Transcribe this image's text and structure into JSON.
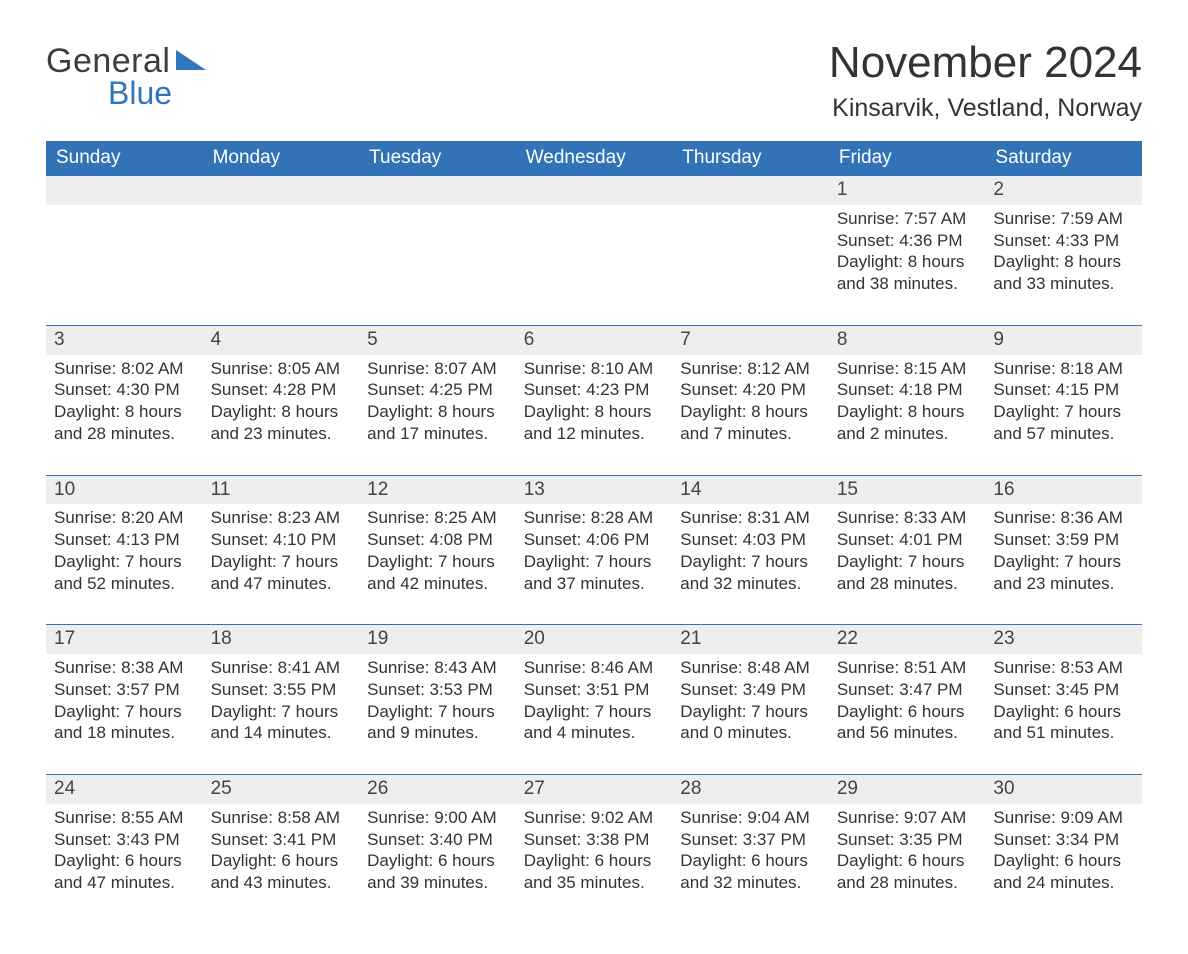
{
  "brand": {
    "general": "General",
    "blue": "Blue"
  },
  "colors": {
    "header_bg": "#3173b6",
    "header_text": "#ffffff",
    "daynum_bg": "#eeeeee",
    "text": "#333333",
    "divider": "#3173b6",
    "logo_blue": "#2f76bb",
    "page_bg": "#ffffff"
  },
  "title": "November 2024",
  "subtitle": "Kinsarvik, Vestland, Norway",
  "dow": [
    "Sunday",
    "Monday",
    "Tuesday",
    "Wednesday",
    "Thursday",
    "Friday",
    "Saturday"
  ],
  "weeks": [
    [
      null,
      null,
      null,
      null,
      null,
      {
        "num": "1",
        "sunrise": "Sunrise: 7:57 AM",
        "sunset": "Sunset: 4:36 PM",
        "dl1": "Daylight: 8 hours",
        "dl2": "and 38 minutes."
      },
      {
        "num": "2",
        "sunrise": "Sunrise: 7:59 AM",
        "sunset": "Sunset: 4:33 PM",
        "dl1": "Daylight: 8 hours",
        "dl2": "and 33 minutes."
      }
    ],
    [
      {
        "num": "3",
        "sunrise": "Sunrise: 8:02 AM",
        "sunset": "Sunset: 4:30 PM",
        "dl1": "Daylight: 8 hours",
        "dl2": "and 28 minutes."
      },
      {
        "num": "4",
        "sunrise": "Sunrise: 8:05 AM",
        "sunset": "Sunset: 4:28 PM",
        "dl1": "Daylight: 8 hours",
        "dl2": "and 23 minutes."
      },
      {
        "num": "5",
        "sunrise": "Sunrise: 8:07 AM",
        "sunset": "Sunset: 4:25 PM",
        "dl1": "Daylight: 8 hours",
        "dl2": "and 17 minutes."
      },
      {
        "num": "6",
        "sunrise": "Sunrise: 8:10 AM",
        "sunset": "Sunset: 4:23 PM",
        "dl1": "Daylight: 8 hours",
        "dl2": "and 12 minutes."
      },
      {
        "num": "7",
        "sunrise": "Sunrise: 8:12 AM",
        "sunset": "Sunset: 4:20 PM",
        "dl1": "Daylight: 8 hours",
        "dl2": "and 7 minutes."
      },
      {
        "num": "8",
        "sunrise": "Sunrise: 8:15 AM",
        "sunset": "Sunset: 4:18 PM",
        "dl1": "Daylight: 8 hours",
        "dl2": "and 2 minutes."
      },
      {
        "num": "9",
        "sunrise": "Sunrise: 8:18 AM",
        "sunset": "Sunset: 4:15 PM",
        "dl1": "Daylight: 7 hours",
        "dl2": "and 57 minutes."
      }
    ],
    [
      {
        "num": "10",
        "sunrise": "Sunrise: 8:20 AM",
        "sunset": "Sunset: 4:13 PM",
        "dl1": "Daylight: 7 hours",
        "dl2": "and 52 minutes."
      },
      {
        "num": "11",
        "sunrise": "Sunrise: 8:23 AM",
        "sunset": "Sunset: 4:10 PM",
        "dl1": "Daylight: 7 hours",
        "dl2": "and 47 minutes."
      },
      {
        "num": "12",
        "sunrise": "Sunrise: 8:25 AM",
        "sunset": "Sunset: 4:08 PM",
        "dl1": "Daylight: 7 hours",
        "dl2": "and 42 minutes."
      },
      {
        "num": "13",
        "sunrise": "Sunrise: 8:28 AM",
        "sunset": "Sunset: 4:06 PM",
        "dl1": "Daylight: 7 hours",
        "dl2": "and 37 minutes."
      },
      {
        "num": "14",
        "sunrise": "Sunrise: 8:31 AM",
        "sunset": "Sunset: 4:03 PM",
        "dl1": "Daylight: 7 hours",
        "dl2": "and 32 minutes."
      },
      {
        "num": "15",
        "sunrise": "Sunrise: 8:33 AM",
        "sunset": "Sunset: 4:01 PM",
        "dl1": "Daylight: 7 hours",
        "dl2": "and 28 minutes."
      },
      {
        "num": "16",
        "sunrise": "Sunrise: 8:36 AM",
        "sunset": "Sunset: 3:59 PM",
        "dl1": "Daylight: 7 hours",
        "dl2": "and 23 minutes."
      }
    ],
    [
      {
        "num": "17",
        "sunrise": "Sunrise: 8:38 AM",
        "sunset": "Sunset: 3:57 PM",
        "dl1": "Daylight: 7 hours",
        "dl2": "and 18 minutes."
      },
      {
        "num": "18",
        "sunrise": "Sunrise: 8:41 AM",
        "sunset": "Sunset: 3:55 PM",
        "dl1": "Daylight: 7 hours",
        "dl2": "and 14 minutes."
      },
      {
        "num": "19",
        "sunrise": "Sunrise: 8:43 AM",
        "sunset": "Sunset: 3:53 PM",
        "dl1": "Daylight: 7 hours",
        "dl2": "and 9 minutes."
      },
      {
        "num": "20",
        "sunrise": "Sunrise: 8:46 AM",
        "sunset": "Sunset: 3:51 PM",
        "dl1": "Daylight: 7 hours",
        "dl2": "and 4 minutes."
      },
      {
        "num": "21",
        "sunrise": "Sunrise: 8:48 AM",
        "sunset": "Sunset: 3:49 PM",
        "dl1": "Daylight: 7 hours",
        "dl2": "and 0 minutes."
      },
      {
        "num": "22",
        "sunrise": "Sunrise: 8:51 AM",
        "sunset": "Sunset: 3:47 PM",
        "dl1": "Daylight: 6 hours",
        "dl2": "and 56 minutes."
      },
      {
        "num": "23",
        "sunrise": "Sunrise: 8:53 AM",
        "sunset": "Sunset: 3:45 PM",
        "dl1": "Daylight: 6 hours",
        "dl2": "and 51 minutes."
      }
    ],
    [
      {
        "num": "24",
        "sunrise": "Sunrise: 8:55 AM",
        "sunset": "Sunset: 3:43 PM",
        "dl1": "Daylight: 6 hours",
        "dl2": "and 47 minutes."
      },
      {
        "num": "25",
        "sunrise": "Sunrise: 8:58 AM",
        "sunset": "Sunset: 3:41 PM",
        "dl1": "Daylight: 6 hours",
        "dl2": "and 43 minutes."
      },
      {
        "num": "26",
        "sunrise": "Sunrise: 9:00 AM",
        "sunset": "Sunset: 3:40 PM",
        "dl1": "Daylight: 6 hours",
        "dl2": "and 39 minutes."
      },
      {
        "num": "27",
        "sunrise": "Sunrise: 9:02 AM",
        "sunset": "Sunset: 3:38 PM",
        "dl1": "Daylight: 6 hours",
        "dl2": "and 35 minutes."
      },
      {
        "num": "28",
        "sunrise": "Sunrise: 9:04 AM",
        "sunset": "Sunset: 3:37 PM",
        "dl1": "Daylight: 6 hours",
        "dl2": "and 32 minutes."
      },
      {
        "num": "29",
        "sunrise": "Sunrise: 9:07 AM",
        "sunset": "Sunset: 3:35 PM",
        "dl1": "Daylight: 6 hours",
        "dl2": "and 28 minutes."
      },
      {
        "num": "30",
        "sunrise": "Sunrise: 9:09 AM",
        "sunset": "Sunset: 3:34 PM",
        "dl1": "Daylight: 6 hours",
        "dl2": "and 24 minutes."
      }
    ]
  ]
}
